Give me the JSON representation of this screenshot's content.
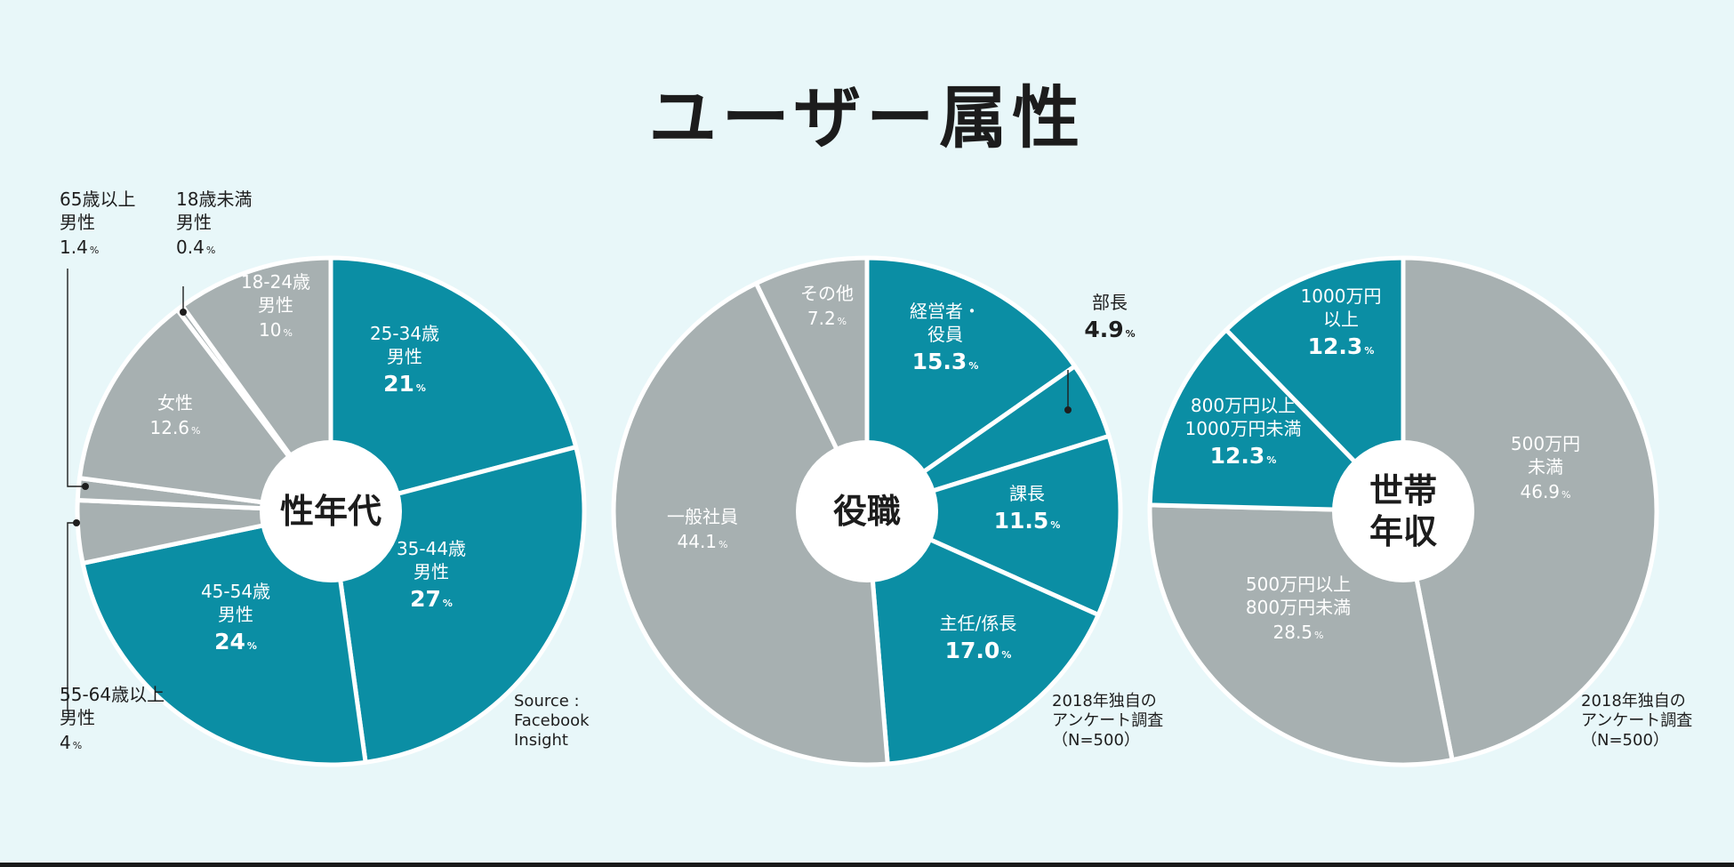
{
  "title": "ユーザー属性",
  "colors": {
    "background": "#e8f7f9",
    "teal": "#0b8ea4",
    "gray": "#a7b0b1",
    "text": "#1e1e1e"
  },
  "charts": [
    {
      "center_label": [
        "性年代"
      ],
      "source": "Source :\nFacebook\nInsight"
    },
    {
      "center_label": [
        "役職"
      ],
      "source": "2018年独自の\nアンケート調査\n（N=500）"
    },
    {
      "center_label": [
        "世帯",
        "年収"
      ],
      "source": "2018年独自の\nアンケート調査\n（N=500）"
    }
  ],
  "chart_data": [
    {
      "type": "pie",
      "title": "性年代",
      "slices": [
        {
          "label": "25-34歳 男性",
          "value": 21,
          "unit": "%",
          "color": "teal"
        },
        {
          "label": "35-44歳 男性",
          "value": 27,
          "unit": "%",
          "color": "teal"
        },
        {
          "label": "45-54歳 男性",
          "value": 24,
          "unit": "%",
          "color": "teal"
        },
        {
          "label": "55-64歳以上 男性",
          "value": 4,
          "unit": "%",
          "color": "gray"
        },
        {
          "label": "65歳以上 男性",
          "value": 1.4,
          "unit": "%",
          "color": "gray"
        },
        {
          "label": "女性",
          "value": 12.6,
          "unit": "%",
          "color": "gray"
        },
        {
          "label": "18歳未満 男性",
          "value": 0.4,
          "unit": "%",
          "color": "gray"
        },
        {
          "label": "18-24歳 男性",
          "value": 10,
          "unit": "%",
          "color": "gray"
        }
      ]
    },
    {
      "type": "pie",
      "title": "役職",
      "slices": [
        {
          "label": "経営者・役員",
          "value": 15.3,
          "unit": "%",
          "color": "teal"
        },
        {
          "label": "部長",
          "value": 4.9,
          "unit": "%",
          "color": "teal"
        },
        {
          "label": "課長",
          "value": 11.5,
          "unit": "%",
          "color": "teal"
        },
        {
          "label": "主任/係長",
          "value": 17.0,
          "unit": "%",
          "color": "teal"
        },
        {
          "label": "一般社員",
          "value": 44.1,
          "unit": "%",
          "color": "gray"
        },
        {
          "label": "その他",
          "value": 7.2,
          "unit": "%",
          "color": "gray"
        }
      ]
    },
    {
      "type": "pie",
      "title": "世帯年収",
      "slices": [
        {
          "label": "500万円未満",
          "value": 46.9,
          "unit": "%",
          "color": "gray"
        },
        {
          "label": "500万円以上800万円未満",
          "value": 28.5,
          "unit": "%",
          "color": "gray"
        },
        {
          "label": "800万円以上1000万円未満",
          "value": 12.3,
          "unit": "%",
          "color": "teal"
        },
        {
          "label": "1000万円以上",
          "value": 12.3,
          "unit": "%",
          "color": "teal"
        }
      ]
    }
  ],
  "slice_labels": [
    [
      {
        "lines": [
          "25-34歳",
          "男性"
        ],
        "value": "21"
      },
      {
        "lines": [
          "35-44歳",
          "男性"
        ],
        "value": "27"
      },
      {
        "lines": [
          "45-54歳",
          "男性"
        ],
        "value": "24"
      },
      {
        "lines": [
          "55-64歳以上",
          "男性"
        ],
        "value": "4"
      },
      {
        "lines": [
          "65歳以上",
          "男性"
        ],
        "value": "1.4"
      },
      {
        "lines": [
          "女性"
        ],
        "value": "12.6"
      },
      {
        "lines": [
          "18歳未満",
          "男性"
        ],
        "value": "0.4"
      },
      {
        "lines": [
          "18-24歳",
          "男性"
        ],
        "value": "10"
      }
    ],
    [
      {
        "lines": [
          "経営者・",
          "役員"
        ],
        "value": "15.3"
      },
      {
        "lines": [
          "部長"
        ],
        "value": "4.9"
      },
      {
        "lines": [
          "課長"
        ],
        "value": "11.5"
      },
      {
        "lines": [
          "主任/係長"
        ],
        "value": "17.0"
      },
      {
        "lines": [
          "一般社員"
        ],
        "value": "44.1"
      },
      {
        "lines": [
          "その他"
        ],
        "value": "7.2"
      }
    ],
    [
      {
        "lines": [
          "500万円",
          "未満"
        ],
        "value": "46.9"
      },
      {
        "lines": [
          "500万円以上",
          "800万円未満"
        ],
        "value": "28.5"
      },
      {
        "lines": [
          "800万円以上",
          "1000万円未満"
        ],
        "value": "12.3"
      },
      {
        "lines": [
          "1000万円",
          "以上"
        ],
        "value": "12.3"
      }
    ]
  ],
  "percent_symbol": "%"
}
